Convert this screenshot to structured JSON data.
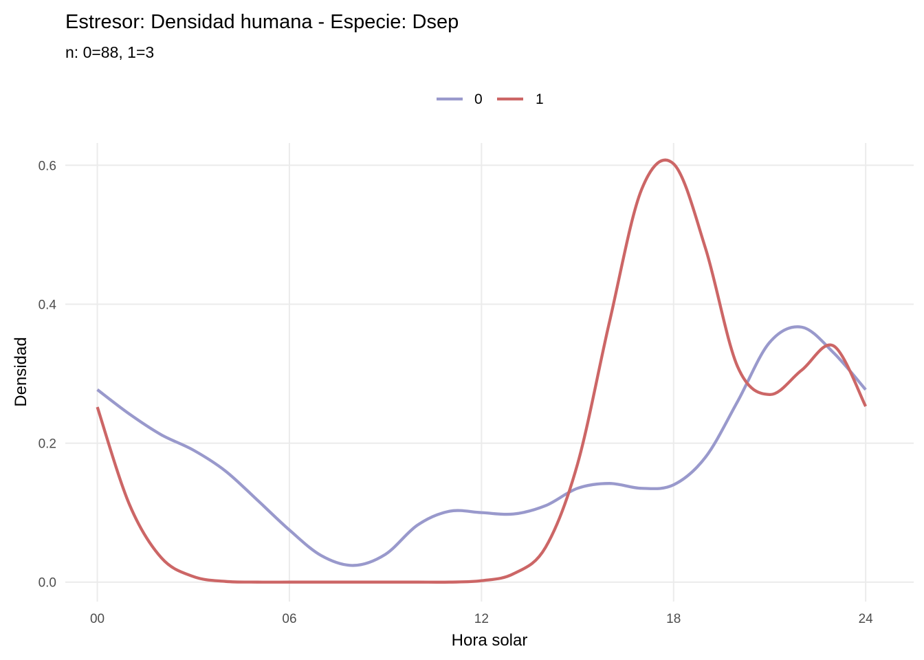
{
  "chart_data": {
    "type": "line",
    "title": "Estresor: Densidad humana - Especie:  Dsep",
    "subtitle": "n:  0=88, 1=3",
    "xlabel": "Hora solar",
    "ylabel": "Densidad",
    "xlim": [
      -1,
      25.5
    ],
    "ylim": [
      -0.028,
      0.632
    ],
    "x_ticks": [
      0,
      6,
      12,
      18,
      24
    ],
    "x_tick_labels": [
      "00",
      "06",
      "12",
      "18",
      "24"
    ],
    "y_ticks": [
      0.0,
      0.2,
      0.4,
      0.6
    ],
    "y_tick_labels": [
      "0.0",
      "0.2",
      "0.4",
      "0.6"
    ],
    "grid": true,
    "legend_position": "top",
    "series": [
      {
        "name": "0",
        "color": "#9999cc",
        "x": [
          0,
          1,
          2,
          3,
          4,
          5,
          6,
          7,
          8,
          9,
          10,
          11,
          12,
          13,
          14,
          15,
          16,
          17,
          18,
          19,
          20,
          21,
          22,
          23,
          24
        ],
        "y": [
          0.277,
          0.242,
          0.212,
          0.19,
          0.16,
          0.118,
          0.075,
          0.038,
          0.024,
          0.04,
          0.082,
          0.102,
          0.1,
          0.098,
          0.11,
          0.135,
          0.142,
          0.135,
          0.14,
          0.18,
          0.26,
          0.345,
          0.367,
          0.33,
          0.277
        ]
      },
      {
        "name": "1",
        "color": "#cc6666",
        "x": [
          0,
          1,
          2,
          3,
          4,
          5,
          6,
          7,
          8,
          9,
          10,
          11,
          12,
          13,
          14,
          15,
          16,
          17,
          18,
          19,
          20,
          21,
          22,
          23,
          24
        ],
        "y": [
          0.252,
          0.112,
          0.035,
          0.008,
          0.001,
          0.0,
          0.0,
          0.0,
          0.0,
          0.0,
          0.0,
          0.0,
          0.002,
          0.012,
          0.05,
          0.17,
          0.375,
          0.565,
          0.602,
          0.48,
          0.31,
          0.27,
          0.305,
          0.34,
          0.253
        ]
      }
    ]
  }
}
